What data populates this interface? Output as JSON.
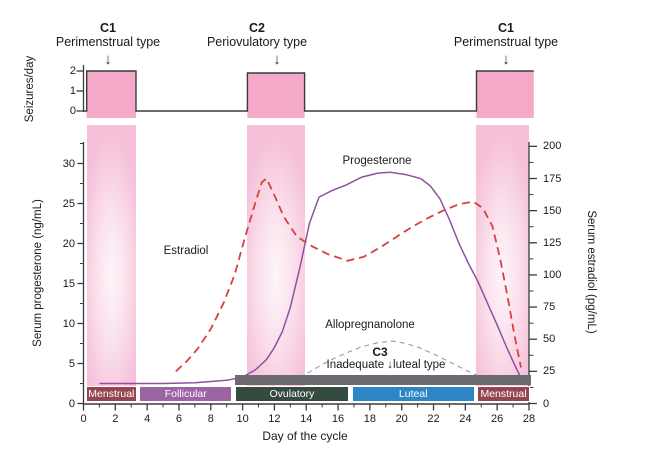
{
  "chart_data": {
    "type": "line",
    "xlabel": "Day of the cycle",
    "ylabel_left": "Serum progesterone (ng/mL)",
    "ylabel_right": "Serum estradiol (pg/mL)",
    "ylabel_seizure": "Seizures/day",
    "x_range": [
      0,
      28
    ],
    "x_ticks": [
      0,
      2,
      4,
      6,
      8,
      10,
      12,
      14,
      16,
      18,
      20,
      22,
      24,
      26,
      28
    ],
    "left_ticks": [
      0,
      5,
      10,
      15,
      20,
      25,
      30
    ],
    "right_ticks": [
      0,
      25,
      50,
      75,
      100,
      125,
      150,
      175,
      200
    ],
    "seizure_ticks": [
      0,
      1,
      2
    ],
    "grid": false,
    "headers": [
      {
        "code": "C1",
        "label": "Perimenstrual type",
        "arrow": "↓"
      },
      {
        "code": "C2",
        "label": "Periovulatory type",
        "arrow": "↓"
      },
      {
        "code": "C1",
        "label": "Perimenstrual type",
        "arrow": "↓"
      }
    ],
    "seizure_steps": [
      {
        "from": 0.2,
        "to": 3.3,
        "level": 2
      },
      {
        "from": 10.3,
        "to": 13.9,
        "level": 1.9
      },
      {
        "from": 24.7,
        "to": 28.3,
        "level": 2
      }
    ],
    "highlight_bands": [
      {
        "from": 0.2,
        "to": 3.3
      },
      {
        "from": 10.3,
        "to": 13.9
      },
      {
        "from": 24.7,
        "to": 28.0
      }
    ],
    "series": [
      {
        "name": "Progesterone",
        "axis": "left",
        "style": "solid",
        "color": "#9050A0",
        "points": [
          [
            1,
            2.5
          ],
          [
            3,
            2.5
          ],
          [
            5,
            2.5
          ],
          [
            7,
            2.6
          ],
          [
            9,
            2.9
          ],
          [
            10,
            3.3
          ],
          [
            10.8,
            4.2
          ],
          [
            11.5,
            5.5
          ],
          [
            12,
            7
          ],
          [
            12.5,
            9
          ],
          [
            13,
            12
          ],
          [
            13.6,
            17
          ],
          [
            14.2,
            22.5
          ],
          [
            14.8,
            25.8
          ],
          [
            15.6,
            26.6
          ],
          [
            16.5,
            27.3
          ],
          [
            17.5,
            28.3
          ],
          [
            18.5,
            28.8
          ],
          [
            19.3,
            28.9
          ],
          [
            20.3,
            28.6
          ],
          [
            21.2,
            28.1
          ],
          [
            21.8,
            27.2
          ],
          [
            22.4,
            25.6
          ],
          [
            23,
            23
          ],
          [
            23.6,
            20
          ],
          [
            24.2,
            17.5
          ],
          [
            24.8,
            15.2
          ],
          [
            25.4,
            12.5
          ],
          [
            26,
            9.8
          ],
          [
            26.6,
            7
          ],
          [
            27.1,
            4.8
          ],
          [
            27.5,
            3.2
          ],
          [
            27.8,
            2.6
          ]
        ]
      },
      {
        "name": "Estradiol",
        "axis": "right",
        "style": "dashed",
        "color": "#D94040",
        "points": [
          [
            5.8,
            25
          ],
          [
            6.5,
            33
          ],
          [
            7.2,
            43
          ],
          [
            8,
            58
          ],
          [
            8.8,
            78
          ],
          [
            9.5,
            100
          ],
          [
            10.1,
            127
          ],
          [
            10.7,
            152
          ],
          [
            11.2,
            172
          ],
          [
            11.5,
            175
          ],
          [
            12,
            162
          ],
          [
            12.6,
            145
          ],
          [
            13.4,
            130
          ],
          [
            14.4,
            122
          ],
          [
            15.4,
            116
          ],
          [
            16.6,
            111
          ],
          [
            17.6,
            114
          ],
          [
            18.6,
            121
          ],
          [
            19.6,
            129
          ],
          [
            20.6,
            137
          ],
          [
            21.6,
            144
          ],
          [
            22.6,
            150
          ],
          [
            23.6,
            155
          ],
          [
            24.5,
            157
          ],
          [
            25.1,
            152
          ],
          [
            25.7,
            138
          ],
          [
            26.2,
            112
          ],
          [
            26.7,
            80
          ],
          [
            27.1,
            52
          ],
          [
            27.5,
            28
          ]
        ]
      },
      {
        "name": "Allopregnanolone",
        "axis": "left",
        "style": "short-dashed",
        "color": "#9B9B9B",
        "points": [
          [
            13.6,
            3.2
          ],
          [
            14.5,
            4.3
          ],
          [
            15.5,
            5.4
          ],
          [
            16.5,
            6.3
          ],
          [
            17.5,
            7.1
          ],
          [
            18.5,
            7.6
          ],
          [
            19.4,
            7.8
          ],
          [
            20.3,
            7.5
          ],
          [
            21.2,
            6.9
          ],
          [
            22.2,
            6
          ],
          [
            23.2,
            5
          ],
          [
            24.2,
            4
          ],
          [
            25,
            3.3
          ]
        ]
      }
    ],
    "phases": [
      {
        "label": "Menstrual",
        "from": 0.15,
        "to": 3.35,
        "color": "#944650"
      },
      {
        "label": "Follicular",
        "from": 3.5,
        "to": 9.35,
        "color": "#9D64A4"
      },
      {
        "label": "Ovulatory",
        "from": 9.5,
        "to": 16.7,
        "color": "#364B40"
      },
      {
        "label": "Luteal",
        "from": 16.85,
        "to": 24.6,
        "color": "#2E86C4"
      },
      {
        "label": "Menstrual",
        "from": 24.75,
        "to": 28.05,
        "color": "#944650"
      }
    ],
    "c3_bar": {
      "from": 9.5,
      "to": 28.1,
      "color": "#6A6A6F"
    },
    "annotations": {
      "progesterone_label": "Progesterone",
      "estradiol_label": "Estradiol",
      "allopregnanolone_label": "Allopregnanolone",
      "c3_code": "C3",
      "c3_text": "Inadequate ↓luteal type"
    },
    "colors": {
      "axis": "#3b3b3b",
      "seizure_fill": "#F3A9C7",
      "band_edge": "#F5C0D8",
      "band_center": "#FDF5F9",
      "phase_text": "#ffffff"
    }
  }
}
